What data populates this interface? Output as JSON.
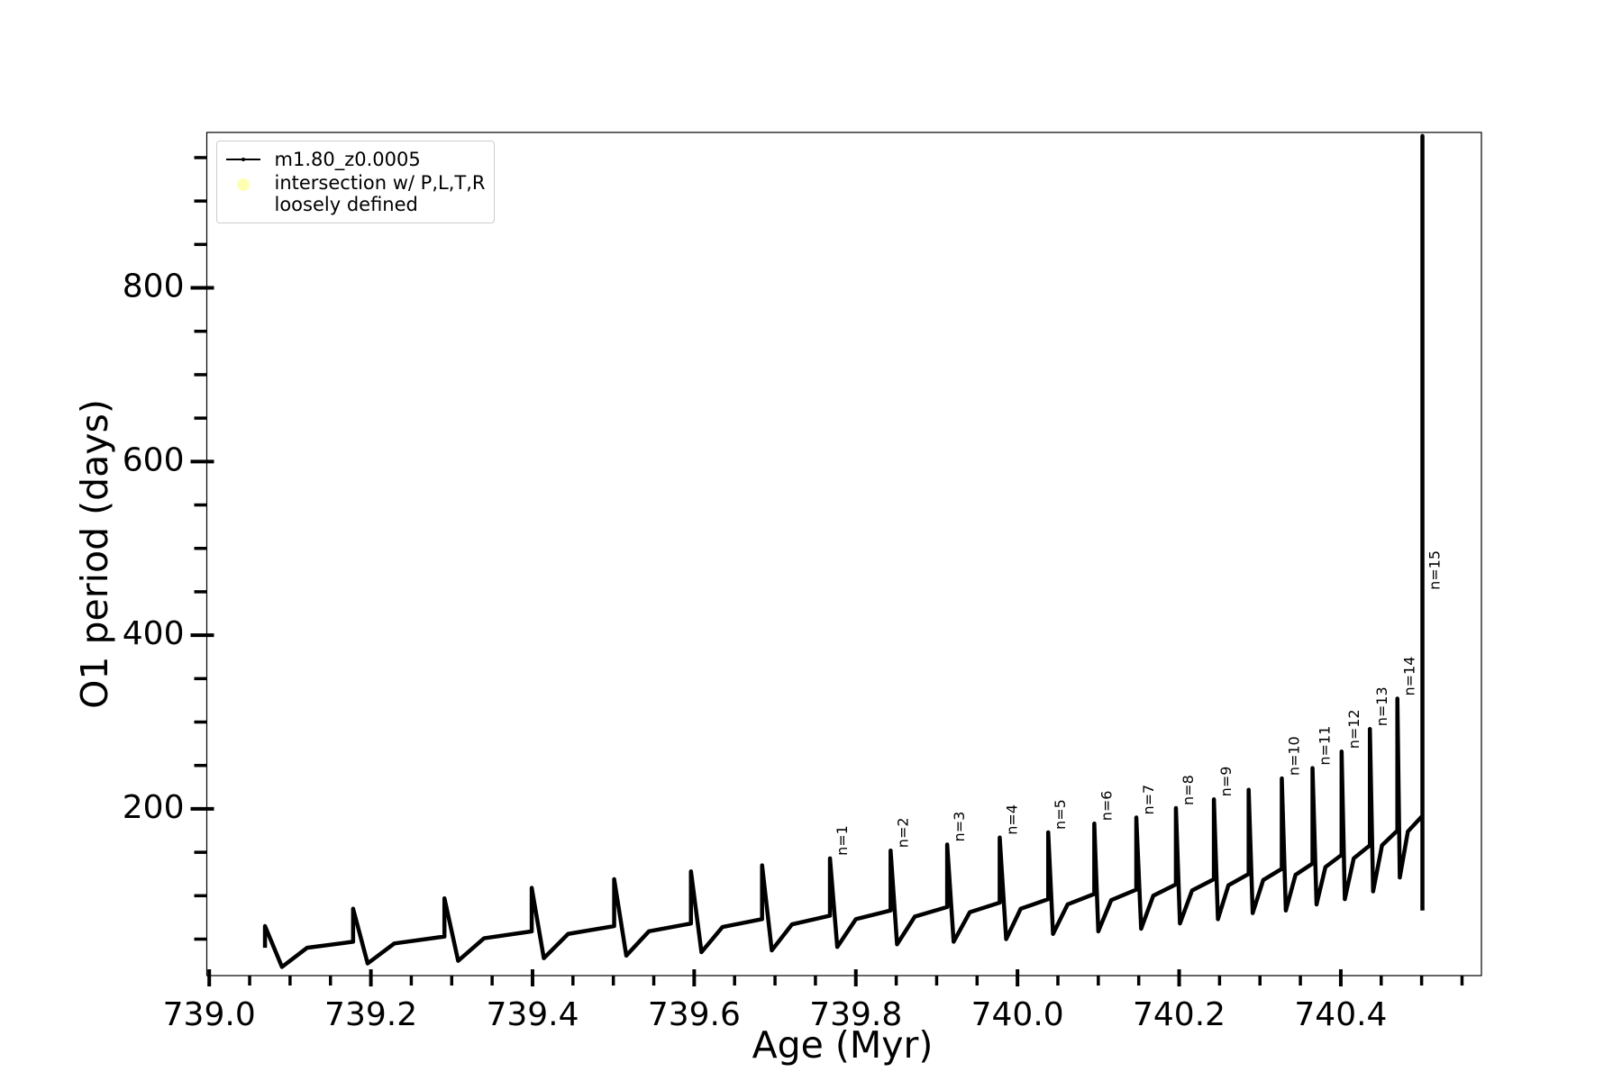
{
  "chart_data": {
    "type": "line",
    "xlabel": "Age (Myr)",
    "ylabel": "O1 period (days)",
    "xlim": [
      738.997,
      740.574
    ],
    "ylim": [
      8,
      979
    ],
    "xticks": [
      {
        "value": 739.0,
        "label": "739.0"
      },
      739.2,
      739.4,
      739.6,
      739.8,
      {
        "value": 740.0,
        "label": "740.0"
      },
      740.2,
      740.4
    ],
    "xminorticks": [
      739.05,
      739.1,
      739.15,
      739.25,
      739.3,
      739.35,
      739.45,
      739.5,
      739.55,
      739.65,
      739.7,
      739.75,
      739.85,
      739.9,
      739.95,
      740.05,
      740.1,
      740.15,
      740.25,
      740.3,
      740.35,
      740.45,
      740.5,
      740.55
    ],
    "yticks": [
      200,
      400,
      600,
      800
    ],
    "yminorticks": [
      50,
      100,
      150,
      250,
      300,
      350,
      450,
      500,
      550,
      650,
      700,
      750,
      850,
      900,
      950
    ],
    "legend": "upper left",
    "series": [
      {
        "name": "m1.80_z0.0005",
        "color": "#000000",
        "x": [
          739.069,
          739.069,
          739.09,
          739.121,
          739.178,
          739.178,
          739.196,
          739.229,
          739.291,
          739.291,
          739.308,
          739.34,
          739.399,
          739.399,
          739.414,
          739.444,
          739.501,
          739.501,
          739.516,
          739.544,
          739.596,
          739.596,
          739.609,
          739.635,
          739.684,
          739.684,
          739.696,
          739.721,
          739.768,
          739.768,
          739.777,
          739.8,
          739.843,
          739.843,
          739.851,
          739.873,
          739.913,
          739.913,
          739.921,
          739.941,
          739.978,
          739.978,
          739.986,
          740.004,
          740.038,
          740.038,
          740.044,
          740.062,
          740.095,
          740.095,
          740.1,
          740.116,
          740.147,
          740.147,
          740.153,
          740.168,
          740.196,
          740.196,
          740.201,
          740.216,
          740.243,
          740.243,
          740.248,
          740.261,
          740.286,
          740.286,
          740.291,
          740.304,
          740.327,
          740.327,
          740.332,
          740.344,
          740.365,
          740.365,
          740.37,
          740.381,
          740.401,
          740.401,
          740.405,
          740.416,
          740.436,
          740.436,
          740.44,
          740.451,
          740.47,
          740.47,
          740.473,
          740.483,
          740.501,
          740.501,
          740.501
        ],
        "values": [
          40,
          65,
          18,
          40,
          47,
          85,
          22,
          45,
          53,
          97,
          25,
          51,
          59,
          109,
          28,
          56,
          65,
          119,
          31,
          59,
          68,
          128,
          35,
          64,
          73,
          135,
          37,
          67,
          77,
          143,
          41,
          73,
          83,
          152,
          44,
          76,
          87,
          159,
          47,
          81,
          92,
          167,
          50,
          85,
          96,
          173,
          56,
          90,
          102,
          183,
          59,
          95,
          107,
          190,
          62,
          100,
          113,
          201,
          68,
          106,
          119,
          211,
          73,
          112,
          125,
          222,
          80,
          118,
          131,
          235,
          83,
          124,
          137,
          247,
          90,
          133,
          147,
          266,
          96,
          143,
          158,
          292,
          105,
          158,
          175,
          327,
          121,
          174,
          192,
          975,
          83
        ]
      },
      {
        "name": "intersection w/ P,L,T,R\nloosely defined",
        "color": "#ffffb3",
        "type": "scatter",
        "x": [],
        "values": []
      }
    ],
    "annotations": [
      {
        "text": "n=1",
        "x": 739.768,
        "y": 143
      },
      {
        "text": "n=2",
        "x": 739.843,
        "y": 152
      },
      {
        "text": "n=3",
        "x": 739.913,
        "y": 159
      },
      {
        "text": "n=4",
        "x": 739.978,
        "y": 167
      },
      {
        "text": "n=5",
        "x": 740.038,
        "y": 173
      },
      {
        "text": "n=6",
        "x": 740.095,
        "y": 183
      },
      {
        "text": "n=7",
        "x": 740.147,
        "y": 190
      },
      {
        "text": "n=8",
        "x": 740.196,
        "y": 201
      },
      {
        "text": "n=9",
        "x": 740.243,
        "y": 211
      },
      {
        "text": "n=10",
        "x": 740.327,
        "y": 235
      },
      {
        "text": "n=11",
        "x": 740.365,
        "y": 247
      },
      {
        "text": "n=12",
        "x": 740.401,
        "y": 266
      },
      {
        "text": "n=13",
        "x": 740.436,
        "y": 292
      },
      {
        "text": "n=14",
        "x": 740.47,
        "y": 327
      },
      {
        "text": "n=15",
        "x": 740.501,
        "y": 449
      }
    ]
  }
}
